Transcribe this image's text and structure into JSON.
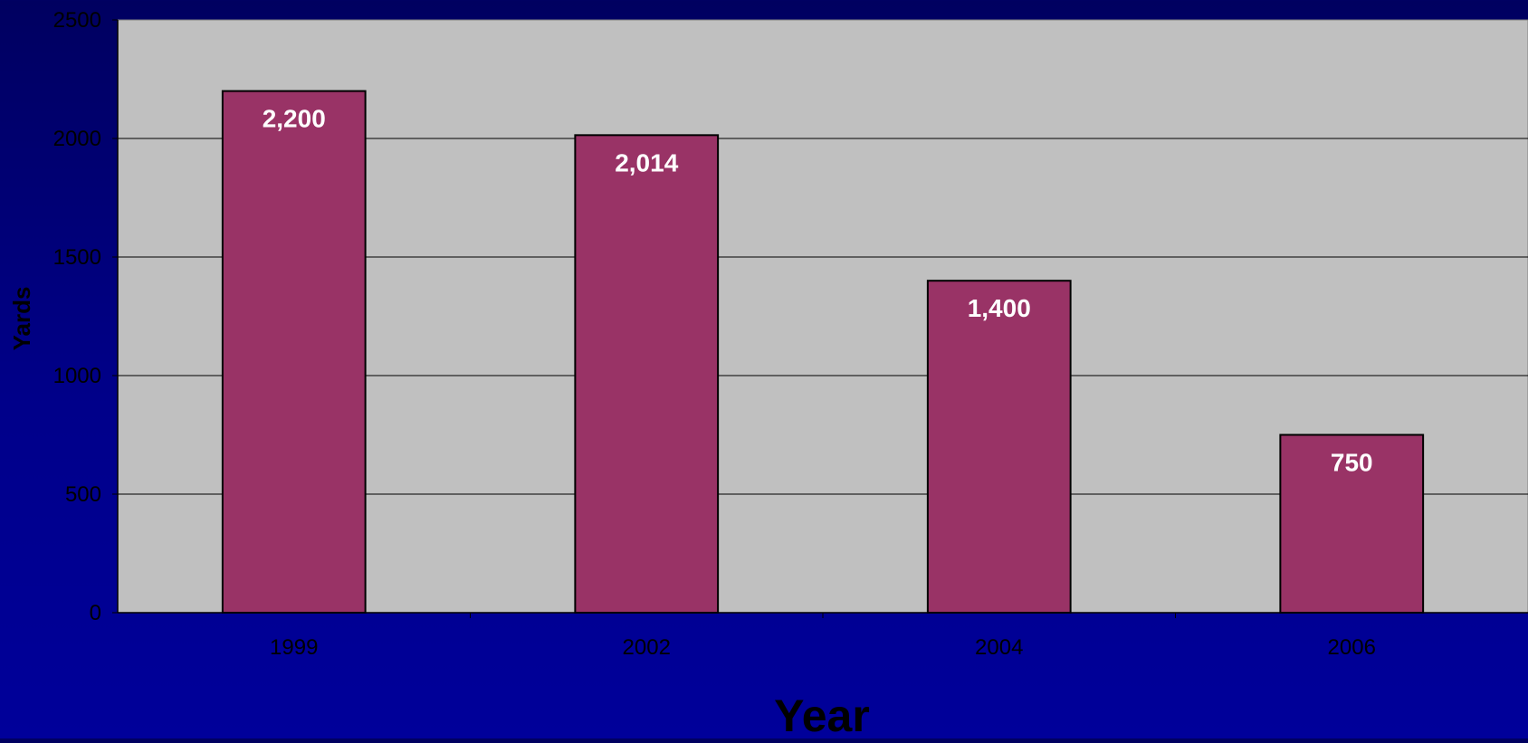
{
  "chart_data": {
    "type": "bar",
    "categories": [
      "1999",
      "2002",
      "2004",
      "2006"
    ],
    "values": [
      2200,
      2014,
      1400,
      750
    ],
    "data_labels": [
      "2,200",
      "2,014",
      "1,400",
      "750"
    ],
    "title": "",
    "xlabel": "Year",
    "ylabel": "Yards",
    "ylim": [
      0,
      2500
    ],
    "yticks": [
      "0",
      "500",
      "1000",
      "1500",
      "2000",
      "2500"
    ],
    "grid": true,
    "legend": "none"
  },
  "colors": {
    "bar_fill": "#993366",
    "plot_background": "#c0c0c0",
    "gridline": "#000000",
    "axis_text": "#000000",
    "data_label": "#ffffff"
  }
}
